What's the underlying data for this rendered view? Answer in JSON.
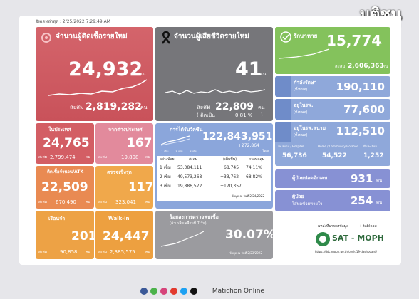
{
  "header": {
    "updated": "อัพเดทล่าสุด : 2/25/2022 7:29:49 AM"
  },
  "logo": {
    "name": "มติชน",
    "sub": "MATICHON ONLINE"
  },
  "new_cases": {
    "title": "จำนวนผู้ติดเชื้อรายใหม่",
    "value": "24,932",
    "unit": "คน",
    "total_label": "สะสม",
    "total": "2,819,282",
    "total_unit": "คน"
  },
  "deaths": {
    "title": "จำนวนผู้เสียชีวิตรายใหม่",
    "value": "41",
    "unit": "คน",
    "total_label": "สะสม",
    "total": "22,809",
    "total_unit": "คน",
    "pct_open": "( คิดเป็น",
    "pct": "0.81 %",
    "pct_close": ")"
  },
  "recovered": {
    "title": "รักษาหาย",
    "value": "15,774",
    "unit": "คน",
    "total_label": "สะสม",
    "total": "2,606,363",
    "total_unit": "คน"
  },
  "treating": {
    "title": "กำลังรักษา",
    "note": "(ทั้งหมด)",
    "value": "190,110"
  },
  "hospital": {
    "title": "อยู่ในรพ.",
    "note": "(ทั้งหมด)",
    "value": "77,600"
  },
  "field_hospital": {
    "title": "อยู่ในรพ.สนาม",
    "note": "(ทั้งหมด)",
    "value": "112,510",
    "parts": [
      {
        "label": "รพ.สนาม / Hospitel",
        "value": "56,736"
      },
      {
        "label": "Home / Community Isolation",
        "value": "54,522"
      },
      {
        "label": "ขึ้นทะเบียน",
        "value": "1,252"
      }
    ]
  },
  "pneumonia": {
    "title": "ผู้ป่วยปอดอักเสบ",
    "value": "931",
    "unit": "คน"
  },
  "ventilator": {
    "title": "ผู้ป่วย",
    "note": "ใส่ท่อช่วยหายใจ",
    "value": "254",
    "unit": "คน"
  },
  "domestic": {
    "title": "ในประเทศ",
    "value": "24,765",
    "total_label": "สะสม",
    "total": "2,799,474",
    "total_unit": "คน"
  },
  "imported": {
    "title": "จากต่างประเทศ",
    "value": "167",
    "total_label": "สะสม",
    "total": "19,808",
    "total_unit": "คน"
  },
  "atk": {
    "title": "ติดเชื้อจำนวน/ATK",
    "value": "22,509",
    "total_label": "สะสม",
    "total": "670,490",
    "total_unit": "คน"
  },
  "active_search": {
    "title": "ตรวจเชิงรุก",
    "value": "117",
    "total_label": "สะสม",
    "total": "323,041",
    "total_unit": "คน"
  },
  "prison": {
    "title": "เรือนจำ",
    "value": "201",
    "total_label": "สะสม",
    "total": "90,858",
    "total_unit": "คน"
  },
  "walkin": {
    "title": "Walk-in",
    "value": "24,447",
    "total_label": "สะสม",
    "total": "2,385,575",
    "total_unit": "คน"
  },
  "vaccine": {
    "title": "การได้รับวัคซีน",
    "value": "122,843,951",
    "increase": "+272,864",
    "unit": "โดส",
    "legend": [
      "1 เข็ม",
      "2 เข็ม",
      "3 เข็ม"
    ],
    "table": {
      "header": [
        "อย่างน้อย",
        "สะสม",
        "(เพิ่มขึ้น)",
        "ครอบคลุม"
      ],
      "rows": [
        [
          "1 เข็ม",
          "53,384,111",
          "+68,745",
          "74.11%"
        ],
        [
          "2 เข็ม",
          "49,573,268",
          "+33,762",
          "68.82%"
        ],
        [
          "3 เข็ม",
          "19,886,572",
          "+170,357"
        ]
      ]
    },
    "date": "ข้อมูล ณ วันที่ 2/24/2022"
  },
  "positivity": {
    "title": "ร้อยละการตรวจพบเชื้อ",
    "note": "(ค่าเฉลี่ยเคลื่อนที่ 7 วัน)",
    "value": "30.07%",
    "date": "ข้อมูล ณ วันที่ 2/23/2022"
  },
  "source": {
    "label": "แหล่งที่มาของข้อมูล",
    "tableau": "+ tableau",
    "name": "SAT - MOPH",
    "url": "https://ddc.moph.go.th/covid19-dashboard/"
  },
  "footer": {
    "text": ": Matichon Online"
  }
}
